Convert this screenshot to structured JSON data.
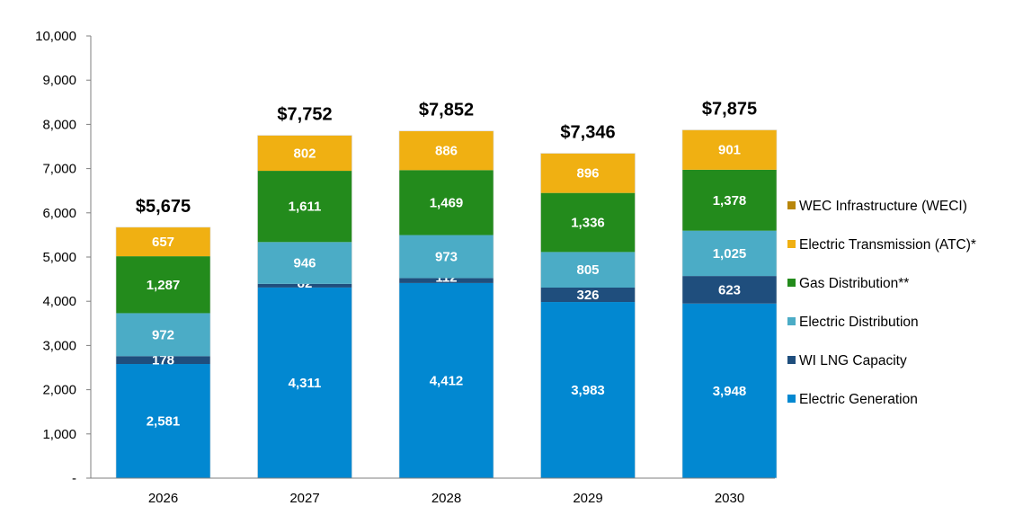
{
  "chart_data": {
    "type": "bar",
    "stacked": true,
    "categories": [
      "2026",
      "2027",
      "2028",
      "2029",
      "2030"
    ],
    "series": [
      {
        "name": "Electric Generation",
        "color": "#0288d1",
        "values": [
          2581,
          4311,
          4412,
          3983,
          3948
        ],
        "labels": [
          "2,581",
          "4,311",
          "4,412",
          "3,983",
          "3,948"
        ]
      },
      {
        "name": "WI LNG Capacity",
        "color": "#1f4e7d",
        "values": [
          178,
          82,
          112,
          326,
          623
        ],
        "labels": [
          "178",
          "82",
          "112",
          "326",
          "623"
        ]
      },
      {
        "name": "Electric Distribution",
        "color": "#4bacc6",
        "values": [
          972,
          946,
          973,
          805,
          1025
        ],
        "labels": [
          "972",
          "946",
          "973",
          "805",
          "1,025"
        ]
      },
      {
        "name": "Gas Distribution**",
        "color": "#238b1c",
        "values": [
          1287,
          1611,
          1469,
          1336,
          1378
        ],
        "labels": [
          "1,287",
          "1,611",
          "1,469",
          "1,336",
          "1,378"
        ]
      },
      {
        "name": "Electric Transmission (ATC)*",
        "color": "#f0b012",
        "values": [
          657,
          802,
          886,
          896,
          901
        ],
        "labels": [
          "657",
          "802",
          "886",
          "896",
          "901"
        ]
      },
      {
        "name": "WEC Infrastructure (WECI)",
        "color": "#b8860b",
        "values": [
          0,
          0,
          0,
          0,
          0
        ],
        "labels": [
          "-",
          "",
          "",
          "",
          ""
        ]
      }
    ],
    "totals": [
      "$5,675",
      "$7,752",
      "$7,852",
      "$7,346",
      "$7,875"
    ],
    "ylim": [
      0,
      10000
    ],
    "yticks": [
      0,
      1000,
      2000,
      3000,
      4000,
      5000,
      6000,
      7000,
      8000,
      9000,
      10000
    ],
    "ytick_labels": [
      "-",
      "1,000",
      "2,000",
      "3,000",
      "4,000",
      "5,000",
      "6,000",
      "7,000",
      "8,000",
      "9,000",
      "10,000"
    ],
    "legend_position": "right",
    "legend_order": [
      "WEC Infrastructure (WECI)",
      "Electric Transmission (ATC)*",
      "Gas Distribution**",
      "Electric Distribution",
      "WI LNG Capacity",
      "Electric Generation"
    ],
    "grid": false
  }
}
